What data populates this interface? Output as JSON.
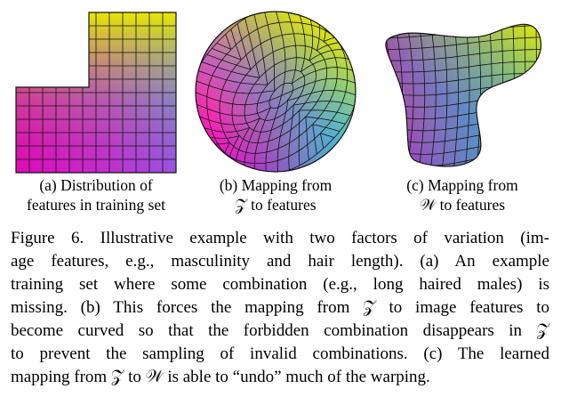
{
  "figure": {
    "panels": [
      {
        "id": "a",
        "caption_line1": "(a) Distribution of",
        "caption_line2": "features in training set"
      },
      {
        "id": "b",
        "caption_line1": "(b) Mapping from",
        "caption_line2": "𝒵 to features"
      },
      {
        "id": "c",
        "caption_line1": "(c) Mapping from",
        "caption_line2": "𝒲 to features"
      }
    ],
    "colors": {
      "yellow": "#e8e800",
      "magenta": "#ff00cc",
      "blue": "#1fa0ff",
      "grid": "#111111"
    }
  },
  "caption": {
    "lines": [
      "Figure 6. Illustrative example with two factors of variation (im-",
      "age features, e.g., masculinity and hair length). (a) An example",
      "training set where some combination (e.g., long haired males) is",
      "missing. (b) This forces the mapping from 𝒵 to image features to",
      "become curved so that the forbidden combination disappears in 𝒵",
      "to prevent the sampling of invalid combinations. (c) The learned",
      "mapping from 𝒵 to 𝒲 is able to “undo” much of the warping."
    ]
  }
}
